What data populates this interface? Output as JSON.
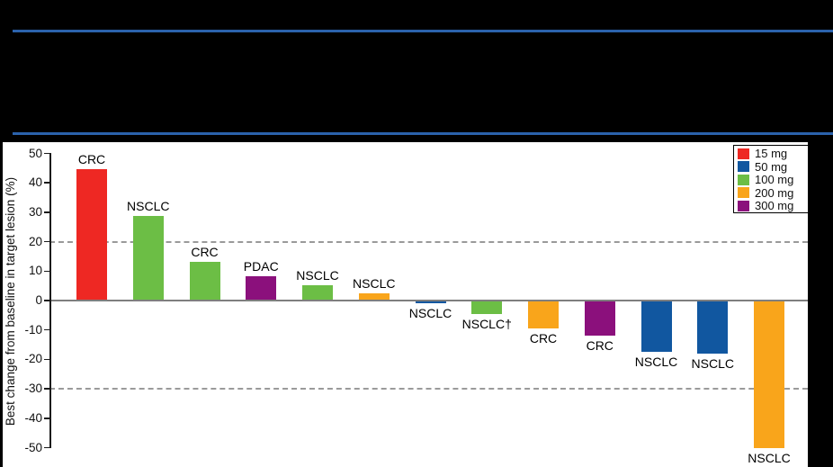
{
  "colors": {
    "page_bg": "#000000",
    "panel_bg": "#ffffff",
    "divider_blue": "#2B62AC",
    "axis_line": "#1a1a1a",
    "zero_line": "#7F7F7F",
    "dashed_line": "#9A9A9A"
  },
  "chart_data": {
    "type": "bar",
    "subtype": "waterfall",
    "title": "",
    "xlabel": "",
    "ylabel": "Best change from baseline in target lesion (%)",
    "ylim": [
      -50,
      50
    ],
    "yticks": [
      50,
      40,
      30,
      20,
      10,
      0,
      -10,
      -20,
      -30,
      -40,
      -50
    ],
    "reference_lines": [
      20,
      -30
    ],
    "grid": "off",
    "legend": {
      "position": "top-right",
      "entries": [
        {
          "label": "15 mg",
          "color": "#EE2823"
        },
        {
          "label": "50 mg",
          "color": "#1157A0"
        },
        {
          "label": "100 mg",
          "color": "#6CBE45"
        },
        {
          "label": "200 mg",
          "color": "#F9A51B"
        },
        {
          "label": "300 mg",
          "color": "#8B107C"
        }
      ]
    },
    "bars": [
      {
        "label": "CRC",
        "dose": "15 mg",
        "value": 44.5
      },
      {
        "label": "NSCLC",
        "dose": "100 mg",
        "value": 28.7
      },
      {
        "label": "CRC",
        "dose": "100 mg",
        "value": 13.0
      },
      {
        "label": "PDAC",
        "dose": "300 mg",
        "value": 8.2
      },
      {
        "label": "NSCLC",
        "dose": "100 mg",
        "value": 5.2
      },
      {
        "label": "NSCLC",
        "dose": "200 mg",
        "value": 2.5
      },
      {
        "label": "NSCLC",
        "dose": "50 mg",
        "value": -1.0
      },
      {
        "label": "NSCLC†",
        "dose": "100 mg",
        "value": -4.5
      },
      {
        "label": "CRC",
        "dose": "200 mg",
        "value": -9.5
      },
      {
        "label": "CRC",
        "dose": "300 mg",
        "value": -12.0
      },
      {
        "label": "NSCLC",
        "dose": "50 mg",
        "value": -17.5
      },
      {
        "label": "NSCLC",
        "dose": "50 mg",
        "value": -18.0
      },
      {
        "label": "NSCLC",
        "dose": "200 mg",
        "value": -50.0
      }
    ]
  }
}
